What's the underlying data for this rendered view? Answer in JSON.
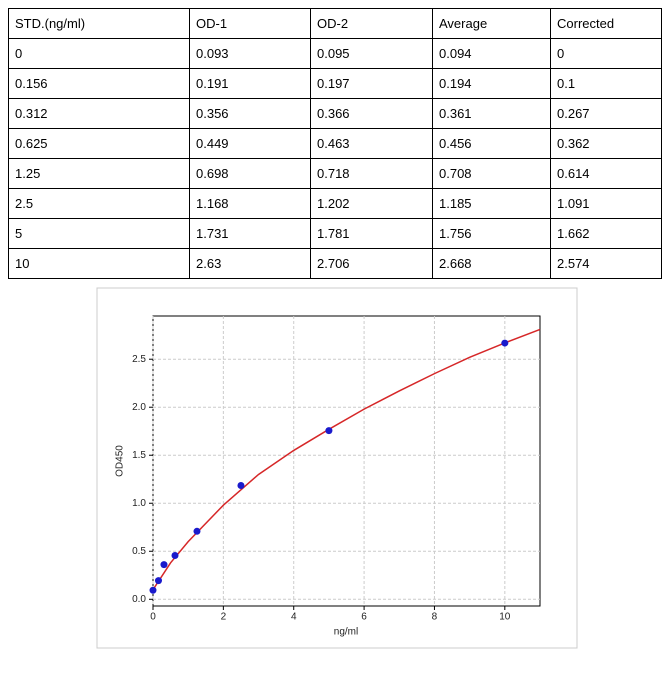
{
  "table": {
    "header": [
      "STD.(ng/ml)",
      "OD-1",
      "OD-2",
      "Average",
      "Corrected"
    ],
    "rows": [
      [
        "0",
        "0.093",
        "0.095",
        "0.094",
        "0"
      ],
      [
        "0.156",
        "0.191",
        "0.197",
        "0.194",
        "0.1"
      ],
      [
        "0.312",
        "0.356",
        "0.366",
        "0.361",
        "0.267"
      ],
      [
        "0.625",
        "0.449",
        "0.463",
        "0.456",
        "0.362"
      ],
      [
        "1.25",
        "0.698",
        "0.718",
        "0.708",
        "0.614"
      ],
      [
        "2.5",
        "1.168",
        "1.202",
        "1.185",
        "1.091"
      ],
      [
        "5",
        "1.731",
        "1.781",
        "1.756",
        "1.662"
      ],
      [
        "10",
        "2.63",
        "2.706",
        "2.668",
        "2.574"
      ]
    ]
  },
  "chart_data": {
    "type": "scatter",
    "x_label": "ng/ml",
    "y_label": "OD450",
    "xlim": [
      0,
      11
    ],
    "ylim": [
      -0.07,
      2.95
    ],
    "xticks": [
      0,
      2,
      4,
      6,
      8,
      10
    ],
    "yticks": [
      {
        "value": 0,
        "label": "0.0"
      },
      {
        "value": 0.5,
        "label": "0.5"
      },
      {
        "value": 1,
        "label": "1.0"
      },
      {
        "value": 1.5,
        "label": "1.5"
      },
      {
        "value": 2,
        "label": "2.0"
      },
      {
        "value": 2.5,
        "label": "2.5"
      }
    ],
    "grid": true,
    "series": [
      {
        "type": "scatter",
        "color": "#1a1acc",
        "x": [
          0,
          0.156,
          0.312,
          0.625,
          1.25,
          2.5,
          5,
          10
        ],
        "values": [
          0.094,
          0.194,
          0.361,
          0.456,
          0.708,
          1.185,
          1.756,
          2.668
        ]
      },
      {
        "type": "line",
        "color": "#d62728",
        "x": [
          0,
          0.5,
          1,
          2,
          3,
          4,
          5,
          6,
          7,
          8,
          9,
          10,
          11
        ],
        "values": [
          0.1,
          0.38,
          0.6,
          0.98,
          1.3,
          1.55,
          1.77,
          1.98,
          2.17,
          2.35,
          2.52,
          2.67,
          2.81
        ]
      }
    ]
  }
}
